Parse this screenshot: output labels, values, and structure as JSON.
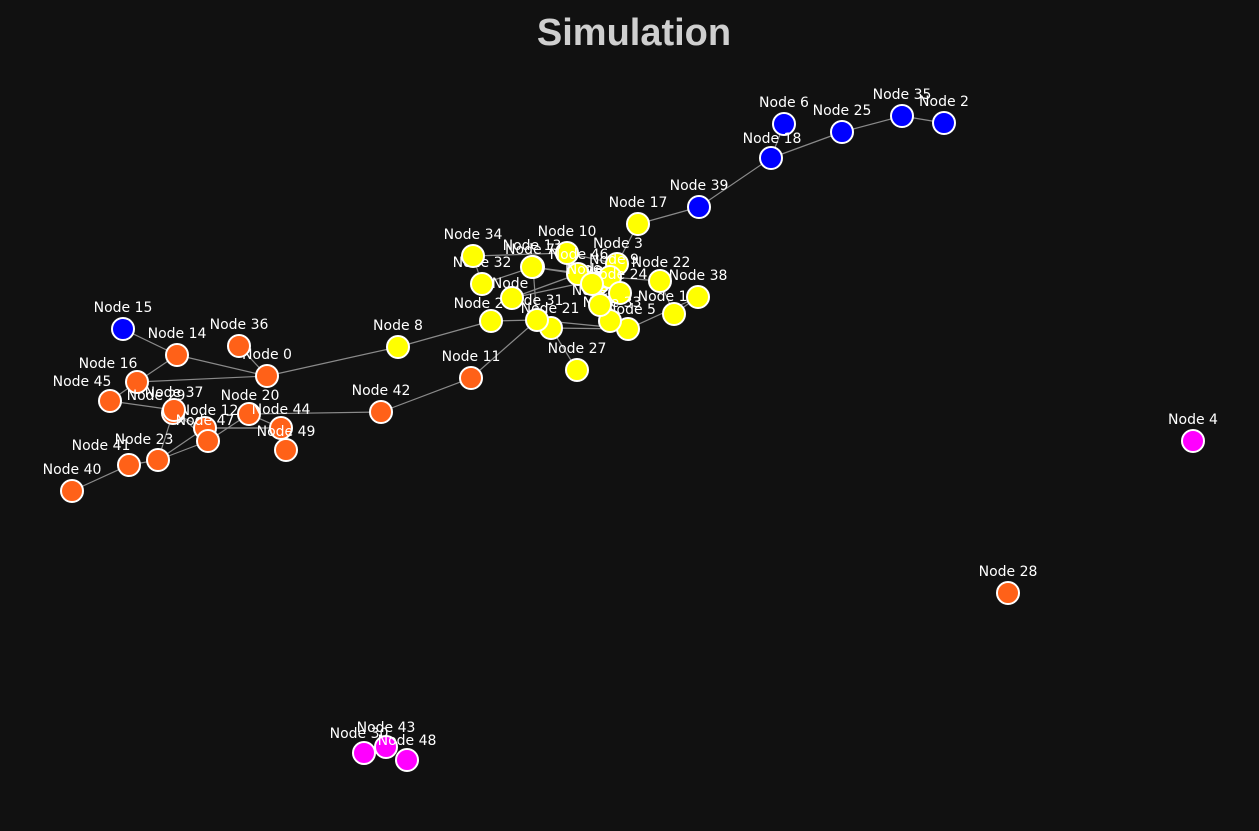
{
  "title": "Simulation",
  "colors": {
    "background": "#111111",
    "group_blue": "#0000ff",
    "group_yellow": "#ffff00",
    "group_orange": "#ff6118",
    "group_magenta": "#ff00ff",
    "edge": "#8a8a8a",
    "node_outline": "#ffffff"
  },
  "nodes": [
    {
      "id": 0,
      "label": "Node 0",
      "group": "orange"
    },
    {
      "id": 1,
      "label": "Node 1",
      "group": "yellow"
    },
    {
      "id": 2,
      "label": "Node 2",
      "group": "blue"
    },
    {
      "id": 3,
      "label": "Node 3",
      "group": "yellow"
    },
    {
      "id": 4,
      "label": "Node 4",
      "group": "magenta"
    },
    {
      "id": 5,
      "label": "Node 5",
      "group": "yellow"
    },
    {
      "id": 6,
      "label": "Node 6",
      "group": "blue"
    },
    {
      "id": 7,
      "label": "Node 7",
      "group": "yellow"
    },
    {
      "id": 8,
      "label": "Node 8",
      "group": "yellow"
    },
    {
      "id": 9,
      "label": "Node 9",
      "group": "yellow"
    },
    {
      "id": 10,
      "label": "Node 10",
      "group": "yellow"
    },
    {
      "id": 11,
      "label": "Node 11",
      "group": "orange"
    },
    {
      "id": 12,
      "label": "Node 12",
      "group": "orange"
    },
    {
      "id": 13,
      "label": "Node 13",
      "group": "yellow"
    },
    {
      "id": 14,
      "label": "Node 14",
      "group": "orange"
    },
    {
      "id": 15,
      "label": "Node 15",
      "group": "blue"
    },
    {
      "id": 16,
      "label": "Node 16",
      "group": "orange"
    },
    {
      "id": 17,
      "label": "Node 17",
      "group": "yellow"
    },
    {
      "id": 18,
      "label": "Node 18",
      "group": "blue"
    },
    {
      "id": 19,
      "label": "Node 19",
      "group": "yellow"
    },
    {
      "id": 20,
      "label": "Node 20",
      "group": "orange"
    },
    {
      "id": 21,
      "label": "Node 21",
      "group": "yellow"
    },
    {
      "id": 22,
      "label": "Node 22",
      "group": "yellow"
    },
    {
      "id": 23,
      "label": "Node 23",
      "group": "orange"
    },
    {
      "id": 24,
      "label": "Node 24",
      "group": "yellow"
    },
    {
      "id": 25,
      "label": "Node 25",
      "group": "blue"
    },
    {
      "id": 26,
      "label": "Node 26",
      "group": "yellow"
    },
    {
      "id": 27,
      "label": "Node 27",
      "group": "yellow"
    },
    {
      "id": 28,
      "label": "Node 28",
      "group": "orange"
    },
    {
      "id": 29,
      "label": "Node 29",
      "group": "orange"
    },
    {
      "id": 30,
      "label": "Node 30",
      "group": "magenta"
    },
    {
      "id": 31,
      "label": "Node 31",
      "group": "yellow"
    },
    {
      "id": 32,
      "label": "Node 32",
      "group": "yellow"
    },
    {
      "id": 33,
      "label": "Node 33",
      "group": "yellow"
    },
    {
      "id": 34,
      "label": "Node 34",
      "group": "yellow"
    },
    {
      "id": 35,
      "label": "Node 35",
      "group": "blue"
    },
    {
      "id": 36,
      "label": "Node 36",
      "group": "orange"
    },
    {
      "id": 37,
      "label": "Node 37",
      "group": "orange"
    },
    {
      "id": 38,
      "label": "Node 38",
      "group": "yellow"
    },
    {
      "id": 39,
      "label": "Node 39",
      "group": "blue"
    },
    {
      "id": 40,
      "label": "Node 40",
      "group": "orange"
    },
    {
      "id": 41,
      "label": "Node 41",
      "group": "orange"
    },
    {
      "id": 42,
      "label": "Node 42",
      "group": "orange"
    },
    {
      "id": 43,
      "label": "Node 43",
      "group": "magenta"
    },
    {
      "id": 44,
      "label": "Node 44",
      "group": "orange"
    },
    {
      "id": 45,
      "label": "Node 45",
      "group": "orange"
    },
    {
      "id": 46,
      "label": "Node 46",
      "group": "yellow"
    },
    {
      "id": 47,
      "label": "Node 47",
      "group": "orange"
    },
    {
      "id": 48,
      "label": "Node 48",
      "group": "magenta"
    },
    {
      "id": 49,
      "label": "Node 49",
      "group": "orange"
    },
    {
      "id": 50,
      "label": "Node",
      "group": "yellow"
    },
    {
      "id": 51,
      "label": "Node",
      "group": "yellow"
    },
    {
      "id": 52,
      "label": "Node",
      "group": "yellow"
    }
  ],
  "edges": [
    [
      15,
      14
    ],
    [
      14,
      0
    ],
    [
      36,
      0
    ],
    [
      0,
      8
    ],
    [
      8,
      26
    ],
    [
      14,
      16
    ],
    [
      16,
      45
    ],
    [
      45,
      37
    ],
    [
      37,
      29
    ],
    [
      29,
      12
    ],
    [
      12,
      47
    ],
    [
      47,
      20
    ],
    [
      20,
      44
    ],
    [
      44,
      49
    ],
    [
      47,
      23
    ],
    [
      23,
      41
    ],
    [
      41,
      40
    ],
    [
      12,
      44
    ],
    [
      20,
      42
    ],
    [
      42,
      11
    ],
    [
      11,
      31
    ],
    [
      31,
      21
    ],
    [
      21,
      5
    ],
    [
      5,
      38
    ],
    [
      38,
      19
    ],
    [
      19,
      22
    ],
    [
      22,
      9
    ],
    [
      9,
      24
    ],
    [
      24,
      1
    ],
    [
      1,
      46
    ],
    [
      46,
      13
    ],
    [
      13,
      7
    ],
    [
      7,
      32
    ],
    [
      32,
      34
    ],
    [
      34,
      10
    ],
    [
      10,
      3
    ],
    [
      3,
      17
    ],
    [
      17,
      39
    ],
    [
      39,
      18
    ],
    [
      18,
      6
    ],
    [
      18,
      25
    ],
    [
      25,
      35
    ],
    [
      35,
      2
    ],
    [
      21,
      27
    ],
    [
      26,
      31
    ],
    [
      31,
      5
    ],
    [
      33,
      5
    ],
    [
      1,
      3
    ],
    [
      7,
      31
    ],
    [
      13,
      9
    ],
    [
      0,
      16
    ],
    [
      23,
      12
    ],
    [
      29,
      23
    ],
    [
      37,
      47
    ],
    [
      44,
      12
    ],
    [
      46,
      50
    ],
    [
      50,
      9
    ],
    [
      9,
      51
    ],
    [
      51,
      52
    ],
    [
      52,
      5
    ]
  ]
}
